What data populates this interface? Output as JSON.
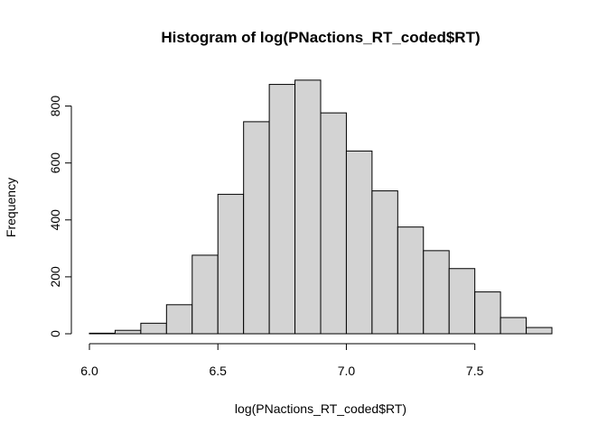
{
  "chart_data": {
    "type": "bar",
    "title": "Histogram of log(PNactions_RT_coded$RT)",
    "xlabel": "log(PNactions_RT_coded$RT)",
    "ylabel": "Frequency",
    "bar_fill": "#d3d3d3",
    "bar_stroke": "#000000",
    "bin_edges": [
      6.0,
      6.1,
      6.2,
      6.3,
      6.4,
      6.5,
      6.6,
      6.7,
      6.8,
      6.9,
      7.0,
      7.1,
      7.2,
      7.3,
      7.4,
      7.5,
      7.6,
      7.7,
      7.8
    ],
    "values": [
      2,
      12,
      37,
      102,
      276,
      490,
      745,
      876,
      891,
      776,
      642,
      502,
      375,
      292,
      229,
      147,
      57,
      22
    ],
    "xlim": [
      6.0,
      7.8
    ],
    "ylim": [
      0,
      900
    ],
    "xticks": [
      6.0,
      6.5,
      7.0,
      7.5
    ],
    "xtick_labels": [
      "6.0",
      "6.5",
      "7.0",
      "7.5"
    ],
    "yticks": [
      0,
      200,
      400,
      600,
      800
    ],
    "ytick_labels": [
      "0",
      "200",
      "400",
      "600",
      "800"
    ],
    "grid": false,
    "legend": "none"
  }
}
